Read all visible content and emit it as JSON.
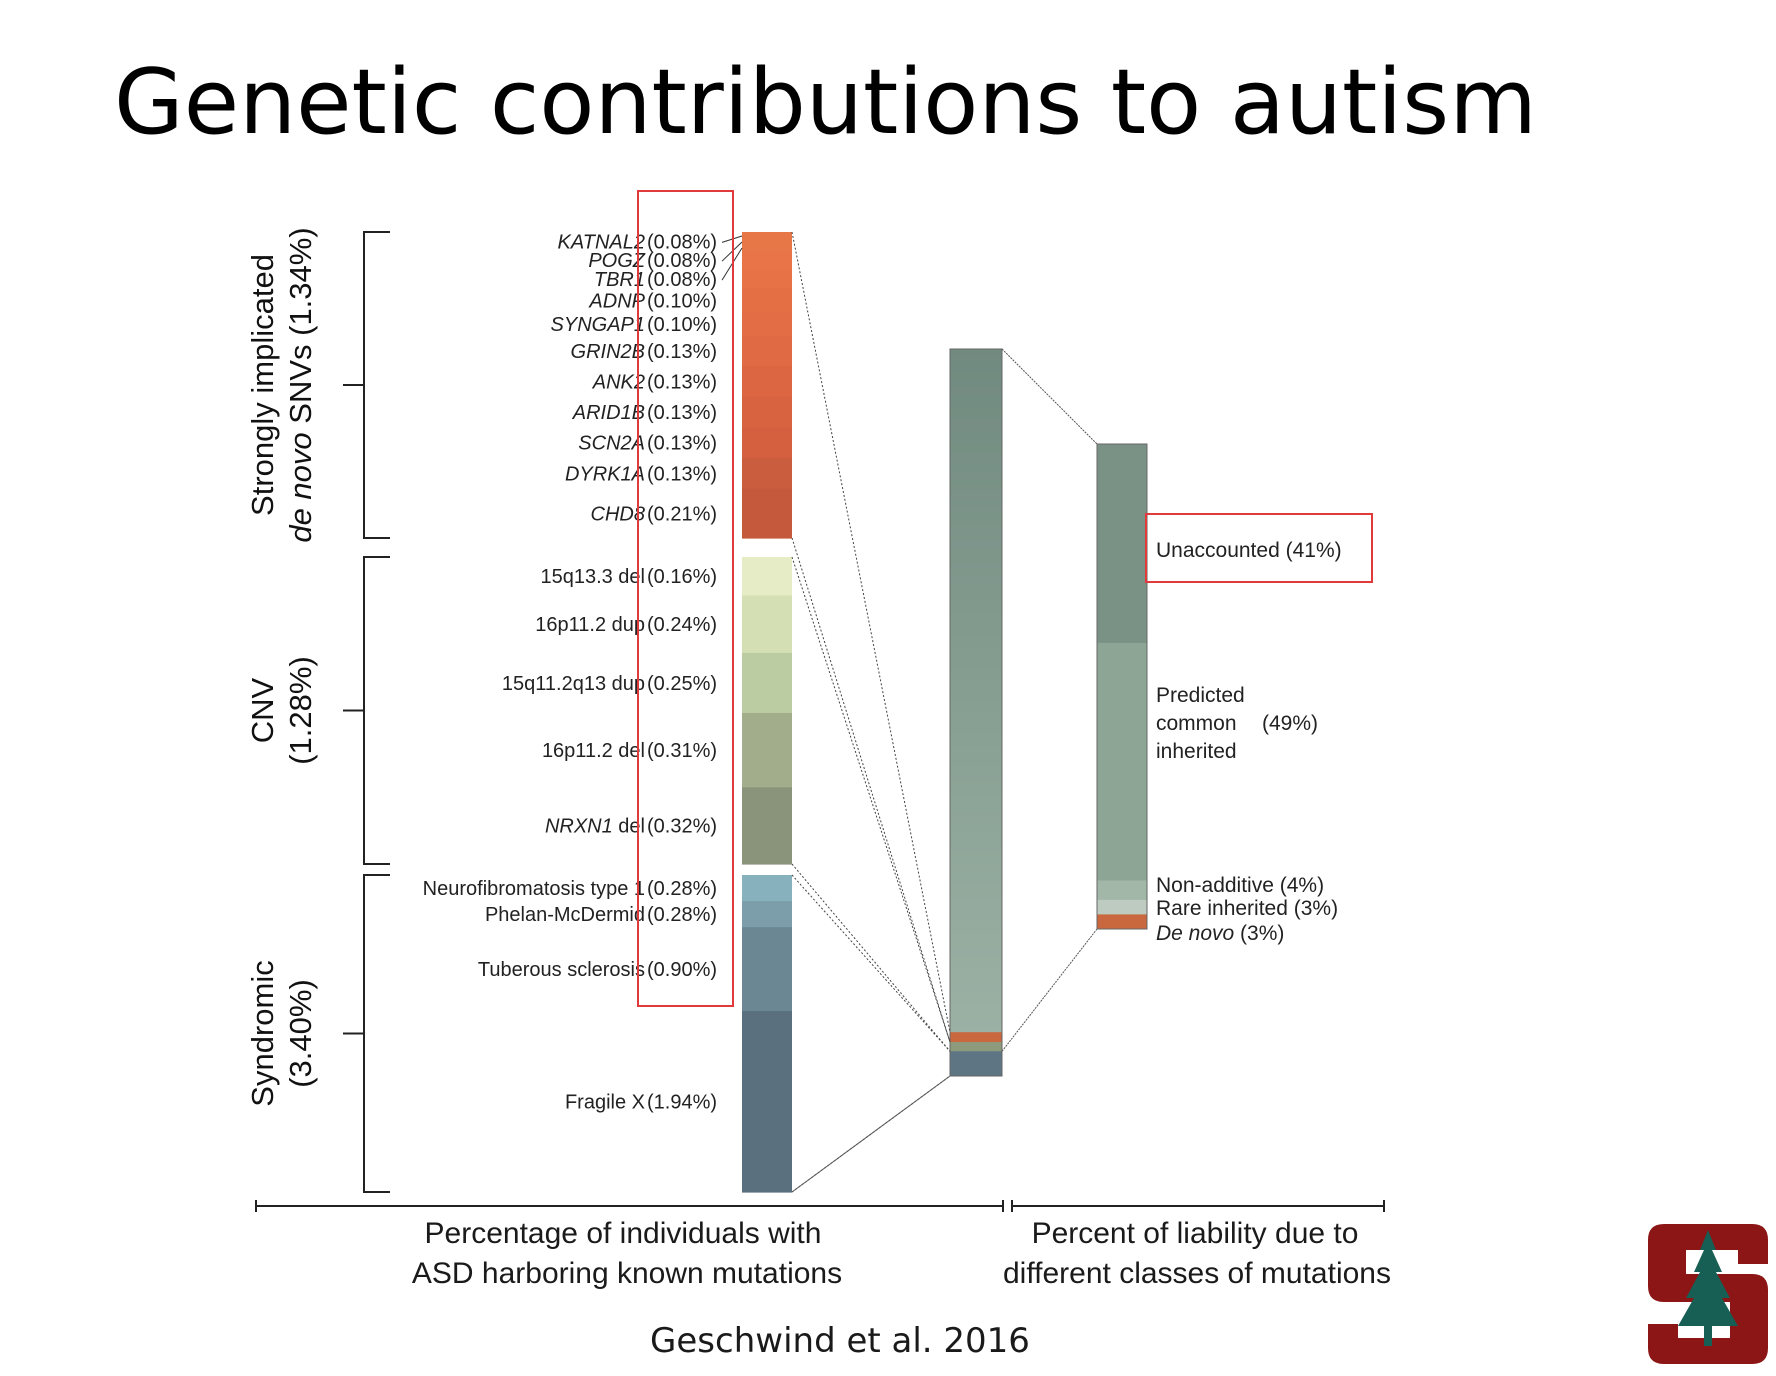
{
  "title": "Genetic contributions to autism",
  "citation": "Geschwind et al. 2016",
  "chart_data": {
    "type": "bar",
    "left_axis_caption": [
      "Percentage of individuals with",
      "ASD harboring known mutations"
    ],
    "right_axis_caption": [
      "Percent of liability due to",
      "different classes of mutations"
    ],
    "groups": [
      {
        "label_lines": [
          {
            "parts": [
              {
                "text": "Strongly implicated",
                "italic": false
              }
            ]
          },
          {
            "parts": [
              {
                "text": "de novo",
                "italic": true
              },
              {
                "text": " SNVs (1.34%)",
                "italic": false
              }
            ]
          }
        ],
        "total": 1.34,
        "segments": [
          {
            "name": "KATNAL2",
            "italic": true,
            "suffix": "",
            "value": 0.08,
            "label": "(0.08%)",
            "color": "#e87748"
          },
          {
            "name": "POGZ",
            "italic": true,
            "suffix": "",
            "value": 0.08,
            "label": "(0.08%)",
            "color": "#e87447"
          },
          {
            "name": "TBR1",
            "italic": true,
            "suffix": "",
            "value": 0.08,
            "label": "(0.08%)",
            "color": "#e77246"
          },
          {
            "name": "ADNP",
            "italic": true,
            "suffix": "",
            "value": 0.1,
            "label": "(0.10%)",
            "color": "#e56f45"
          },
          {
            "name": "SYNGAP1",
            "italic": true,
            "suffix": "",
            "value": 0.1,
            "label": "(0.10%)",
            "color": "#e36d44"
          },
          {
            "name": "GRIN2B",
            "italic": true,
            "suffix": "",
            "value": 0.13,
            "label": "(0.13%)",
            "color": "#e06a43"
          },
          {
            "name": "ANK2",
            "italic": true,
            "suffix": "",
            "value": 0.13,
            "label": "(0.13%)",
            "color": "#dc6642"
          },
          {
            "name": "ARID1B",
            "italic": true,
            "suffix": "",
            "value": 0.13,
            "label": "(0.13%)",
            "color": "#d86341"
          },
          {
            "name": "SCN2A",
            "italic": true,
            "suffix": "",
            "value": 0.13,
            "label": "(0.13%)",
            "color": "#d46040"
          },
          {
            "name": "DYRK1A",
            "italic": true,
            "suffix": "",
            "value": 0.13,
            "label": "(0.13%)",
            "color": "#c95d3d"
          },
          {
            "name": "CHD8",
            "italic": true,
            "suffix": "",
            "value": 0.21,
            "label": "(0.21%)",
            "color": "#c45a3b"
          }
        ]
      },
      {
        "label_lines": [
          {
            "parts": [
              {
                "text": "CNV",
                "italic": false
              }
            ]
          },
          {
            "parts": [
              {
                "text": "(1.28%)",
                "italic": false
              }
            ]
          }
        ],
        "total": 1.28,
        "segments": [
          {
            "name": "15q13.3 del",
            "italic": false,
            "suffix": "",
            "value": 0.16,
            "label": "(0.16%)",
            "color": "#e6edc6"
          },
          {
            "name": "16p11.2 dup",
            "italic": false,
            "suffix": "",
            "value": 0.24,
            "label": "(0.24%)",
            "color": "#d4e0b4"
          },
          {
            "name": "15q11.2q13 dup",
            "italic": false,
            "suffix": "",
            "value": 0.25,
            "label": "(0.25%)",
            "color": "#bccca2"
          },
          {
            "name": "16p11.2 del",
            "italic": false,
            "suffix": "",
            "value": 0.31,
            "label": "(0.31%)",
            "color": "#a2ae8b"
          },
          {
            "name": "NRXN1",
            "italic": true,
            "suffix": " del",
            "value": 0.32,
            "label": "(0.32%)",
            "color": "#8a947b"
          }
        ]
      },
      {
        "label_lines": [
          {
            "parts": [
              {
                "text": "Syndromic",
                "italic": false
              }
            ]
          },
          {
            "parts": [
              {
                "text": "(3.40%)",
                "italic": false
              }
            ]
          }
        ],
        "total": 3.4,
        "segments": [
          {
            "name": "Neurofibromatosis type 1",
            "italic": false,
            "suffix": "",
            "value": 0.28,
            "label": "(0.28%)",
            "color": "#86b1bd"
          },
          {
            "name": "Phelan-McDermid",
            "italic": false,
            "suffix": "",
            "value": 0.28,
            "label": "(0.28%)",
            "color": "#7c9eaa"
          },
          {
            "name": "Tuberous sclerosis",
            "italic": false,
            "suffix": "",
            "value": 0.9,
            "label": "(0.90%)",
            "color": "#6b8793"
          },
          {
            "name": "Fragile X",
            "italic": false,
            "suffix": "",
            "value": 1.94,
            "label": "(1.94%)",
            "color": "#5b707e"
          }
        ]
      }
    ],
    "liability": [
      {
        "name": "Unaccounted",
        "italic": false,
        "value": 41,
        "label": "(41%)",
        "color": "#7a9185"
      },
      {
        "name": "Predicted common inherited",
        "lines": [
          "Predicted",
          "common",
          "inherited"
        ],
        "italic": false,
        "value": 49,
        "label": "(49%)",
        "color": "#8ca595"
      },
      {
        "name": "Non-additive",
        "italic": false,
        "value": 4,
        "label": "(4%)",
        "color": "#a3b7a9"
      },
      {
        "name": "Rare inherited",
        "italic": false,
        "value": 3,
        "label": "(3%)",
        "color": "#bdcbc0"
      },
      {
        "name": "De novo",
        "italic": true,
        "value": 3,
        "label": "(3%)",
        "color": "#c9683f"
      }
    ],
    "highlight_boxes": [
      "left-percentage-column",
      "unaccounted-label"
    ],
    "colors": {
      "accent_box": "#e03a3a",
      "logo_red": "#8c1515",
      "logo_green": "#175e54"
    }
  }
}
